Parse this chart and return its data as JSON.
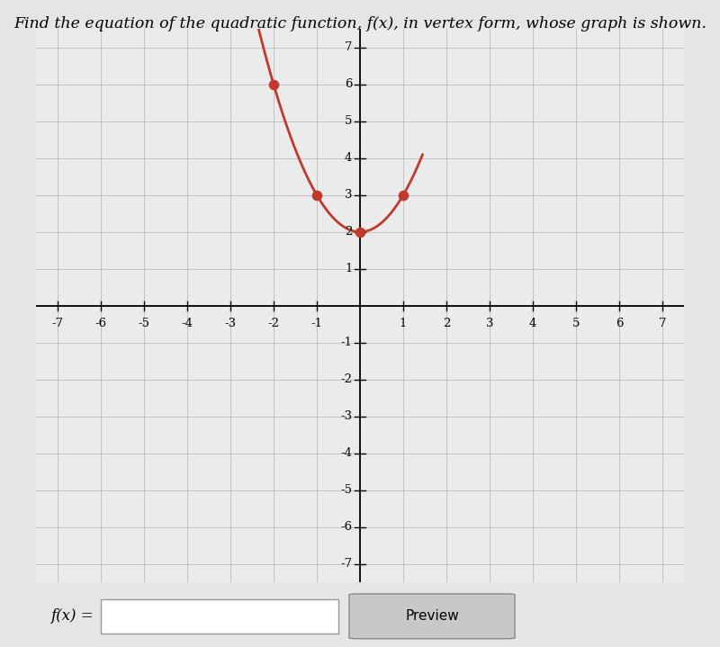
{
  "title": "Find the equation of the quadratic function, f(x), in vertex form, whose graph is shown.",
  "title_fontsize": 12.5,
  "curve_color": "#c0392b",
  "dot_color": "#c0392b",
  "dot_size": 70,
  "line_width": 2.0,
  "vertex": [
    0,
    2
  ],
  "a": 1,
  "highlight_points": [
    [
      -2,
      6
    ],
    [
      -1,
      3
    ],
    [
      0,
      2
    ],
    [
      1,
      3
    ]
  ],
  "xlim": [
    -7.5,
    7.5
  ],
  "ylim": [
    -7.5,
    7.5
  ],
  "xtick_vals": [
    -7,
    -6,
    -5,
    -4,
    -3,
    -2,
    -1,
    1,
    2,
    3,
    4,
    5,
    6,
    7
  ],
  "ytick_vals": [
    -7,
    -6,
    -5,
    -4,
    -3,
    -2,
    -1,
    1,
    2,
    3,
    4,
    5,
    6,
    7
  ],
  "grid_color": "#bbbbbb",
  "grid_linewidth": 0.6,
  "background_color": "#e5e5e5",
  "plot_area_color": "#ebebeb",
  "xlabel_text": "f(x) =",
  "preview_button_text": "Preview",
  "curve_x_start": -3.0,
  "curve_x_end": 1.45
}
